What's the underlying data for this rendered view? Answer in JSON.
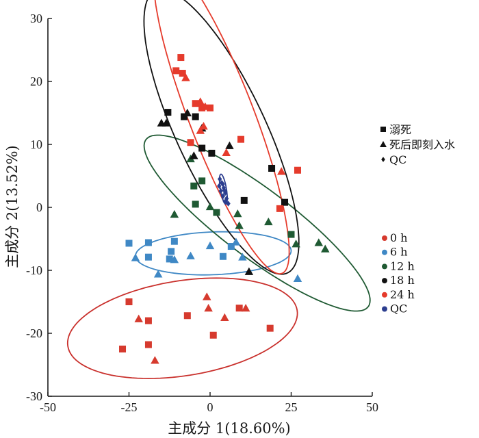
{
  "chart_data": {
    "type": "scatter",
    "title": "",
    "xlabel": "主成分 1(18.60%)",
    "ylabel": "主成分 2(13.52%)",
    "xlim": [
      -50,
      50
    ],
    "ylim": [
      -30,
      30
    ],
    "xticks": [
      "-50",
      "-25",
      "0",
      "25",
      "50"
    ],
    "yticks": [
      "-30",
      "-20",
      "-10",
      "0",
      "10",
      "20",
      "30"
    ],
    "shape_legend": [
      {
        "marker": "square",
        "label": "溺死"
      },
      {
        "marker": "triangle",
        "label": "死后即刻入水"
      },
      {
        "marker": "diamond",
        "label": "QC"
      }
    ],
    "color_legend": [
      {
        "color": "#d63a2e",
        "label": "0 h"
      },
      {
        "color": "#3f88c5",
        "label": "6 h"
      },
      {
        "color": "#1f5a33",
        "label": "12 h"
      },
      {
        "color": "#111111",
        "label": "18 h"
      },
      {
        "color": "#e53b2c",
        "label": "24 h"
      },
      {
        "color": "#2c3e8f",
        "label": "QC"
      }
    ],
    "series": [
      {
        "name": "0 h",
        "color": "#d63a2e",
        "points": [
          {
            "x": -27,
            "y": -22.5,
            "m": "square"
          },
          {
            "x": -25,
            "y": -15,
            "m": "square"
          },
          {
            "x": -19,
            "y": -18,
            "m": "square"
          },
          {
            "x": -19,
            "y": -21.8,
            "m": "square"
          },
          {
            "x": -7,
            "y": -17.2,
            "m": "square"
          },
          {
            "x": 1,
            "y": -20.3,
            "m": "square"
          },
          {
            "x": 9,
            "y": -16,
            "m": "square"
          },
          {
            "x": 18.5,
            "y": -19.2,
            "m": "square"
          },
          {
            "x": -22,
            "y": -17.7,
            "m": "triangle"
          },
          {
            "x": -17,
            "y": -24.3,
            "m": "triangle"
          },
          {
            "x": -1,
            "y": -14.2,
            "m": "triangle"
          },
          {
            "x": -0.5,
            "y": -16,
            "m": "triangle"
          },
          {
            "x": 4.5,
            "y": -17.5,
            "m": "triangle"
          },
          {
            "x": 11,
            "y": -16,
            "m": "triangle"
          }
        ]
      },
      {
        "name": "6 h",
        "color": "#3f88c5",
        "points": [
          {
            "x": -25,
            "y": -5.7,
            "m": "square"
          },
          {
            "x": -19,
            "y": -5.6,
            "m": "square"
          },
          {
            "x": -19,
            "y": -7.9,
            "m": "square"
          },
          {
            "x": -12,
            "y": -7,
            "m": "square"
          },
          {
            "x": -12.5,
            "y": -8.2,
            "m": "square"
          },
          {
            "x": -11,
            "y": -5.4,
            "m": "square"
          },
          {
            "x": 4,
            "y": -7.8,
            "m": "square"
          },
          {
            "x": 6.5,
            "y": -6.2,
            "m": "square"
          },
          {
            "x": -23,
            "y": -8,
            "m": "triangle"
          },
          {
            "x": -16,
            "y": -10.6,
            "m": "triangle"
          },
          {
            "x": -11,
            "y": -8.3,
            "m": "triangle"
          },
          {
            "x": -6,
            "y": -7.7,
            "m": "triangle"
          },
          {
            "x": 0,
            "y": -6.1,
            "m": "triangle"
          },
          {
            "x": 8,
            "y": -5.5,
            "m": "triangle"
          },
          {
            "x": 10,
            "y": -7.9,
            "m": "triangle"
          },
          {
            "x": 27,
            "y": -11.3,
            "m": "triangle"
          }
        ]
      },
      {
        "name": "12 h",
        "color": "#1f5a33",
        "points": [
          {
            "x": -5,
            "y": 3.4,
            "m": "square"
          },
          {
            "x": -4.5,
            "y": 0.5,
            "m": "square"
          },
          {
            "x": -2.5,
            "y": 4.2,
            "m": "square"
          },
          {
            "x": 2,
            "y": -0.8,
            "m": "square"
          },
          {
            "x": 25,
            "y": -4.3,
            "m": "square"
          },
          {
            "x": -11,
            "y": -1.1,
            "m": "triangle"
          },
          {
            "x": -6,
            "y": 7.7,
            "m": "triangle"
          },
          {
            "x": 0,
            "y": 0.1,
            "m": "triangle"
          },
          {
            "x": 8.5,
            "y": -1,
            "m": "triangle"
          },
          {
            "x": 9,
            "y": -2.9,
            "m": "triangle"
          },
          {
            "x": 18,
            "y": -2.3,
            "m": "triangle"
          },
          {
            "x": 26.5,
            "y": -5.8,
            "m": "triangle"
          },
          {
            "x": 33.5,
            "y": -5.6,
            "m": "triangle"
          },
          {
            "x": 35.5,
            "y": -6.6,
            "m": "triangle"
          }
        ]
      },
      {
        "name": "18 h",
        "color": "#111111",
        "points": [
          {
            "x": -13,
            "y": 15.1,
            "m": "square"
          },
          {
            "x": -8,
            "y": 14.4,
            "m": "square"
          },
          {
            "x": -4.5,
            "y": 14.4,
            "m": "square"
          },
          {
            "x": -2.5,
            "y": 9.4,
            "m": "square"
          },
          {
            "x": 0.5,
            "y": 8.6,
            "m": "square"
          },
          {
            "x": 10.5,
            "y": 1.1,
            "m": "square"
          },
          {
            "x": 19,
            "y": 6.2,
            "m": "square"
          },
          {
            "x": 23,
            "y": 0.8,
            "m": "square"
          },
          {
            "x": -15,
            "y": 13.4,
            "m": "triangle"
          },
          {
            "x": -13.5,
            "y": 13.4,
            "m": "triangle"
          },
          {
            "x": -7,
            "y": 15,
            "m": "triangle"
          },
          {
            "x": -5,
            "y": 8.2,
            "m": "triangle"
          },
          {
            "x": -2.5,
            "y": 12.6,
            "m": "triangle"
          },
          {
            "x": 6,
            "y": 9.8,
            "m": "triangle"
          },
          {
            "x": 12,
            "y": -10.2,
            "m": "triangle"
          }
        ]
      },
      {
        "name": "24 h",
        "color": "#e53b2c",
        "points": [
          {
            "x": -9,
            "y": 23.8,
            "m": "square"
          },
          {
            "x": -10.5,
            "y": 21.7,
            "m": "square"
          },
          {
            "x": -8.5,
            "y": 21.3,
            "m": "square"
          },
          {
            "x": -4.5,
            "y": 16.5,
            "m": "square"
          },
          {
            "x": -2.5,
            "y": 15.8,
            "m": "square"
          },
          {
            "x": 0,
            "y": 15.8,
            "m": "square"
          },
          {
            "x": -6,
            "y": 10.3,
            "m": "square"
          },
          {
            "x": 9.5,
            "y": 10.8,
            "m": "square"
          },
          {
            "x": 21.5,
            "y": -0.2,
            "m": "square"
          },
          {
            "x": 27,
            "y": 5.9,
            "m": "square"
          },
          {
            "x": -7.5,
            "y": 20.6,
            "m": "triangle"
          },
          {
            "x": -3,
            "y": 16.8,
            "m": "triangle"
          },
          {
            "x": -1.5,
            "y": 16,
            "m": "triangle"
          },
          {
            "x": -3,
            "y": 12.2,
            "m": "triangle"
          },
          {
            "x": -2,
            "y": 12.9,
            "m": "triangle"
          },
          {
            "x": 5,
            "y": 8.7,
            "m": "triangle"
          },
          {
            "x": 22,
            "y": 5.7,
            "m": "triangle"
          }
        ]
      },
      {
        "name": "QC",
        "color": "#2c3e8f",
        "points": [
          {
            "x": 3,
            "y": 4.5,
            "m": "diamond"
          },
          {
            "x": 3.6,
            "y": 3.9,
            "m": "diamond"
          },
          {
            "x": 2.8,
            "y": 3.4,
            "m": "diamond"
          },
          {
            "x": 4.2,
            "y": 3.1,
            "m": "diamond"
          },
          {
            "x": 3.3,
            "y": 2.6,
            "m": "diamond"
          },
          {
            "x": 4.7,
            "y": 2.3,
            "m": "diamond"
          },
          {
            "x": 4.0,
            "y": 1.8,
            "m": "diamond"
          },
          {
            "x": 5.1,
            "y": 1.4,
            "m": "diamond"
          },
          {
            "x": 4.6,
            "y": 0.9,
            "m": "diamond"
          },
          {
            "x": 5.6,
            "y": 0.6,
            "m": "diamond"
          },
          {
            "x": 3.9,
            "y": 3.7,
            "m": "diamond"
          },
          {
            "x": 4.4,
            "y": 2.7,
            "m": "diamond"
          }
        ]
      }
    ],
    "ellipses": [
      {
        "name": "0 h",
        "color": "#c9302c",
        "cx": -8.5,
        "cy": -19.2,
        "rx": 35.5,
        "ry": 7.6,
        "angle": 4
      },
      {
        "name": "6 h",
        "color": "#3f88c5",
        "cx": 1,
        "cy": -7.3,
        "rx": 24,
        "ry": 3.4,
        "angle": 1
      },
      {
        "name": "12 h",
        "color": "#1f5a33",
        "cx": 14.5,
        "cy": -2.5,
        "rx": 37,
        "ry": 6.3,
        "angle": -20
      },
      {
        "name": "18 h",
        "color": "#111111",
        "cx": 3.5,
        "cy": 12,
        "rx": 31,
        "ry": 11,
        "angle": -43
      },
      {
        "name": "24 h",
        "color": "#e53b2c",
        "cx": 3.5,
        "cy": 14.5,
        "rx": 31.5,
        "ry": 8.5,
        "angle": -51
      },
      {
        "name": "QC",
        "color": "#2c3e8f",
        "cx": 4.1,
        "cy": 2.9,
        "rx": 2.5,
        "ry": 0.9,
        "angle": -70
      }
    ]
  }
}
